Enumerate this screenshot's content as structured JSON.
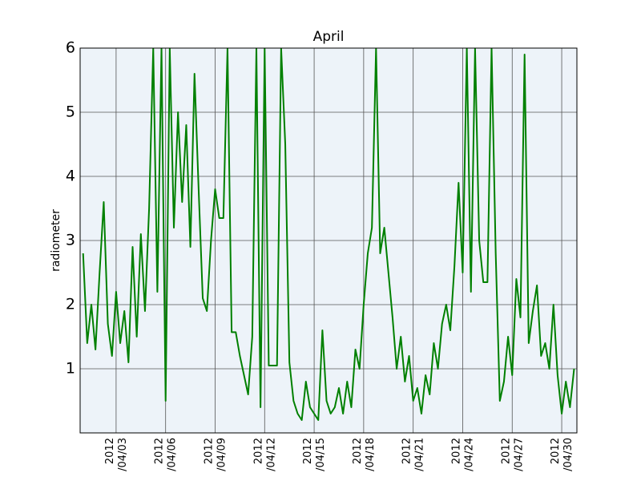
{
  "chart_data": {
    "type": "line",
    "title": "April",
    "y_label": "radiometer",
    "x": [
      1.0,
      1.25,
      1.5,
      1.75,
      2.0,
      2.25,
      2.5,
      2.75,
      3.0,
      3.25,
      3.5,
      3.75,
      4.0,
      4.25,
      4.5,
      4.75,
      5.0,
      5.25,
      5.5,
      5.75,
      6.0,
      6.25,
      6.5,
      6.75,
      7.0,
      7.25,
      7.5,
      7.75,
      8.0,
      8.25,
      8.5,
      8.75,
      9.0,
      9.25,
      9.5,
      9.75,
      10.0,
      10.25,
      10.5,
      10.75,
      11.0,
      11.25,
      11.5,
      11.75,
      12.0,
      12.25,
      12.5,
      12.75,
      13.0,
      13.25,
      13.5,
      13.75,
      14.0,
      14.25,
      14.5,
      14.75,
      15.0,
      15.25,
      15.5,
      15.75,
      16.0,
      16.25,
      16.5,
      16.75,
      17.0,
      17.25,
      17.5,
      17.75,
      18.0,
      18.25,
      18.5,
      18.75,
      19.0,
      19.25,
      19.5,
      19.75,
      20.0,
      20.25,
      20.5,
      20.75,
      21.0,
      21.25,
      21.5,
      21.75,
      22.0,
      22.25,
      22.5,
      22.75,
      23.0,
      23.25,
      23.5,
      23.75,
      24.0,
      24.25,
      24.5,
      24.75,
      25.0,
      25.25,
      25.5,
      25.75,
      26.0,
      26.25,
      26.5,
      26.75,
      27.0,
      27.25,
      27.5,
      27.75,
      28.0,
      28.25,
      28.5,
      28.75,
      29.0,
      29.25,
      29.5,
      29.75,
      30.0,
      30.25,
      30.5,
      30.75
    ],
    "series": [
      {
        "name": "radiometer",
        "color": "#008000",
        "values": [
          2.8,
          1.4,
          2.0,
          1.3,
          2.5,
          3.6,
          1.7,
          1.2,
          2.2,
          1.4,
          1.9,
          1.1,
          2.9,
          1.5,
          3.1,
          1.9,
          3.5,
          6.0,
          2.2,
          6.0,
          0.5,
          6.0,
          3.2,
          5.0,
          3.6,
          4.8,
          2.9,
          5.6,
          3.8,
          2.1,
          1.9,
          3.0,
          3.8,
          3.35,
          3.35,
          6.0,
          1.57,
          1.57,
          1.2,
          0.9,
          0.6,
          1.5,
          6.0,
          0.4,
          6.0,
          1.05,
          1.05,
          1.05,
          6.0,
          4.5,
          1.1,
          0.5,
          0.3,
          0.2,
          0.8,
          0.4,
          0.3,
          0.2,
          1.6,
          0.5,
          0.3,
          0.4,
          0.7,
          0.3,
          0.8,
          0.4,
          1.3,
          1.0,
          2.0,
          2.8,
          3.2,
          6.0,
          2.8,
          3.2,
          2.5,
          1.8,
          1.0,
          1.5,
          0.8,
          1.2,
          0.5,
          0.7,
          0.3,
          0.9,
          0.6,
          1.4,
          1.0,
          1.7,
          2.0,
          1.6,
          2.6,
          3.9,
          2.5,
          6.0,
          2.2,
          6.0,
          3.0,
          2.35,
          2.35,
          6.0,
          2.8,
          0.5,
          0.8,
          1.5,
          0.9,
          2.4,
          1.8,
          5.9,
          1.4,
          1.9,
          2.3,
          1.2,
          1.4,
          1.0,
          2.0,
          0.9,
          0.3,
          0.8,
          0.4,
          1.0
        ]
      }
    ],
    "xlim": [
      0.82,
      30.92
    ],
    "xticks": [
      {
        "value": 3,
        "label": "2012\n/04/03"
      },
      {
        "value": 6,
        "label": "2012\n/04/06"
      },
      {
        "value": 9,
        "label": "2012\n/04/09"
      },
      {
        "value": 12,
        "label": "2012\n/04/12"
      },
      {
        "value": 15,
        "label": "2012\n/04/15"
      },
      {
        "value": 18,
        "label": "2012\n/04/18"
      },
      {
        "value": 21,
        "label": "2012\n/04/21"
      },
      {
        "value": 24,
        "label": "2012\n/04/24"
      },
      {
        "value": 27,
        "label": "2012\n/04/27"
      },
      {
        "value": 30,
        "label": "2012\n/04/30"
      }
    ],
    "ylim": [
      0,
      6
    ],
    "yticks": [
      1,
      2,
      3,
      4,
      5,
      6
    ],
    "grid": true,
    "background": "#edf3f9"
  }
}
